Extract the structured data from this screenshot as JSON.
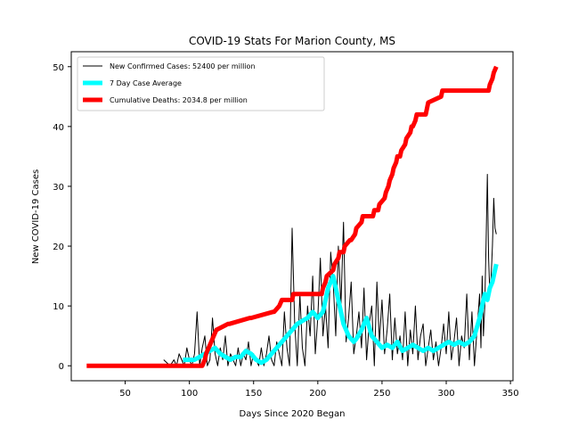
{
  "chart_data": {
    "type": "line",
    "title": "COVID-19 Stats For Marion County, MS",
    "xlabel": "Days Since 2020 Began",
    "ylabel": "New COVID-19 Cases",
    "xlim": [
      8,
      352
    ],
    "ylim": [
      -2.5,
      52.5
    ],
    "xticks": [
      50,
      100,
      150,
      200,
      250,
      300,
      350
    ],
    "yticks": [
      0,
      10,
      20,
      30,
      40,
      50
    ],
    "grid": false,
    "legend_position": "top-left",
    "series": [
      {
        "name": "New Confirmed Cases: 52400 per million",
        "color": "#000000",
        "x": [
          80,
          85,
          88,
          90,
          92,
          94,
          96,
          98,
          100,
          102,
          104,
          106,
          108,
          110,
          112,
          114,
          116,
          118,
          120,
          122,
          124,
          126,
          128,
          130,
          132,
          134,
          136,
          138,
          140,
          142,
          144,
          146,
          148,
          150,
          152,
          154,
          156,
          158,
          160,
          162,
          164,
          166,
          168,
          170,
          172,
          174,
          176,
          178,
          180,
          182,
          184,
          186,
          188,
          190,
          192,
          194,
          196,
          198,
          200,
          202,
          204,
          206,
          208,
          210,
          212,
          214,
          216,
          218,
          220,
          222,
          224,
          226,
          228,
          230,
          232,
          234,
          236,
          238,
          240,
          242,
          244,
          246,
          248,
          250,
          252,
          254,
          256,
          258,
          260,
          262,
          264,
          266,
          268,
          270,
          272,
          274,
          276,
          278,
          280,
          282,
          284,
          286,
          288,
          290,
          292,
          294,
          296,
          298,
          300,
          302,
          304,
          306,
          308,
          310,
          312,
          314,
          316,
          318,
          320,
          322,
          324,
          326,
          327,
          328,
          329,
          330,
          331,
          332,
          333,
          334,
          335,
          336,
          337,
          338,
          339
        ],
        "values": [
          1,
          0,
          1,
          0,
          2,
          1,
          0,
          3,
          1,
          0,
          2,
          9,
          0,
          3,
          5,
          0,
          1,
          8,
          2,
          0,
          3,
          1,
          5,
          0,
          2,
          1,
          0,
          3,
          0,
          2,
          1,
          4,
          0,
          2,
          1,
          0,
          3,
          0,
          2,
          5,
          1,
          0,
          4,
          2,
          0,
          9,
          3,
          0,
          23,
          7,
          0,
          12,
          3,
          0,
          10,
          5,
          15,
          2,
          8,
          18,
          5,
          10,
          3,
          19,
          14,
          5,
          20,
          10,
          24,
          4,
          8,
          14,
          2,
          5,
          9,
          3,
          13,
          1,
          7,
          10,
          0,
          14,
          4,
          11,
          2,
          6,
          12,
          1,
          8,
          2,
          5,
          1,
          9,
          0,
          6,
          2,
          10,
          1,
          5,
          7,
          0,
          3,
          6,
          1,
          4,
          0,
          3,
          7,
          2,
          9,
          1,
          4,
          8,
          0,
          5,
          3,
          12,
          1,
          9,
          0,
          6,
          12,
          3,
          15,
          5,
          10,
          20,
          32,
          18,
          12,
          15,
          20,
          28,
          23,
          22
        ]
      },
      {
        "name": "7 Day Case Average",
        "color": "#00ffff",
        "x": [
          95,
          100,
          104,
          108,
          112,
          116,
          120,
          124,
          128,
          132,
          136,
          140,
          144,
          148,
          152,
          156,
          160,
          164,
          168,
          172,
          176,
          180,
          184,
          188,
          192,
          196,
          200,
          204,
          208,
          210,
          212,
          214,
          216,
          218,
          220,
          222,
          224,
          226,
          228,
          230,
          234,
          238,
          242,
          246,
          250,
          254,
          258,
          262,
          266,
          270,
          274,
          278,
          282,
          286,
          290,
          294,
          298,
          302,
          306,
          310,
          314,
          318,
          322,
          326,
          328,
          330,
          332,
          334,
          336,
          338,
          339
        ],
        "values": [
          1,
          1,
          1,
          1.5,
          2,
          2.5,
          3,
          2,
          1.5,
          1,
          1.5,
          1.5,
          2.5,
          2,
          1,
          0.5,
          1,
          2,
          3,
          4,
          5,
          6,
          7,
          7.5,
          8,
          9,
          8,
          9,
          13,
          14,
          15,
          13,
          11,
          9,
          7,
          6,
          5,
          4.5,
          4,
          4.5,
          6,
          8,
          5,
          4,
          3,
          3.5,
          3,
          4,
          2.5,
          3,
          3.5,
          3,
          2.5,
          3,
          2.5,
          3,
          3.5,
          4,
          3.5,
          4,
          3.5,
          4,
          5,
          8,
          10,
          12,
          11,
          13,
          14,
          16,
          17
        ]
      },
      {
        "name": "Cumulative Deaths: 2034.8 per million",
        "color": "#ff0000",
        "x": [
          20,
          50,
          75,
          100,
          108,
          110,
          112,
          113,
          115,
          117,
          119,
          121,
          130,
          131,
          147,
          148,
          165,
          166,
          170,
          172,
          180,
          181,
          188,
          189,
          203,
          204,
          206,
          207,
          212,
          213,
          216,
          217,
          220,
          221,
          225,
          226,
          229,
          230,
          234,
          235,
          238,
          239,
          243,
          244,
          247,
          248,
          252,
          253,
          255,
          256,
          258,
          259,
          261,
          262,
          264,
          265,
          268,
          269,
          272,
          273,
          274,
          276,
          277,
          279,
          280,
          282,
          283,
          284,
          285,
          286,
          296,
          297,
          300,
          301,
          303,
          304,
          307,
          308,
          332,
          333,
          334,
          336,
          337,
          339
        ],
        "values": [
          0,
          0,
          0,
          0,
          0,
          0,
          1,
          2,
          3,
          4,
          5,
          6,
          7,
          7,
          8,
          8,
          9,
          9,
          10,
          11,
          11,
          12,
          12,
          12,
          12,
          13,
          14,
          15,
          16,
          17,
          18,
          19,
          19,
          20,
          21,
          21,
          22,
          23,
          24,
          25,
          25,
          25,
          25,
          26,
          26,
          27,
          28,
          29,
          30,
          31,
          32,
          33,
          34,
          35,
          35,
          36,
          37,
          38,
          39,
          40,
          40,
          41,
          42,
          42,
          42,
          42,
          42,
          42,
          43,
          44,
          45,
          46,
          46,
          46,
          46,
          46,
          46,
          46,
          46,
          46,
          47,
          48,
          49,
          50
        ]
      }
    ]
  }
}
